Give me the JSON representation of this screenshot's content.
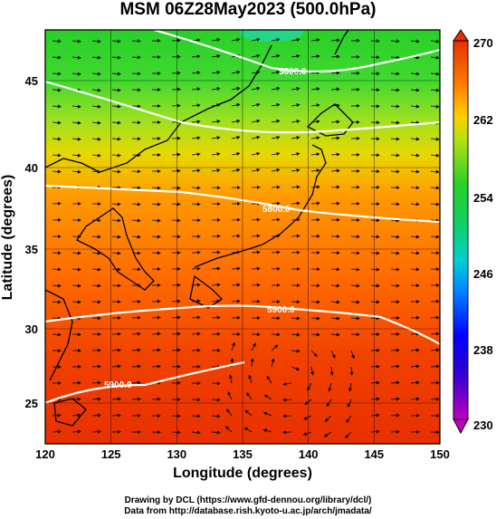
{
  "title": "MSM 06Z28May2023 (500.0hPa)",
  "x_axis": {
    "label": "Longitude (degrees)",
    "ticks": [
      "120",
      "125",
      "130",
      "135",
      "140",
      "145",
      "150"
    ]
  },
  "y_axis": {
    "label": "Latitude  (degrees)",
    "ticks": [
      "25",
      "30",
      "35",
      "40",
      "45"
    ]
  },
  "colorbar": {
    "ticks": [
      "230",
      "238",
      "246",
      "254",
      "262",
      "270"
    ],
    "range": [
      230,
      270
    ]
  },
  "contours": [
    {
      "label": "5600.0"
    },
    {
      "label": "5800.0"
    },
    {
      "label": "5900.0"
    },
    {
      "label": "5900.0"
    }
  ],
  "footer": {
    "line1": "Drawing by DCL (https://www.gfd-dennou.org/library/dcl/)",
    "line2": "Data from http://database.rish.kyoto-u.ac.jp/arch/jmadata/"
  },
  "colors": {
    "cold": "#c000c0",
    "cool": "#0000ff",
    "mid": "#00c0ff",
    "green": "#28d028",
    "yellow": "#d8e800",
    "orange": "#ff8000",
    "warm": "#e83000"
  }
}
